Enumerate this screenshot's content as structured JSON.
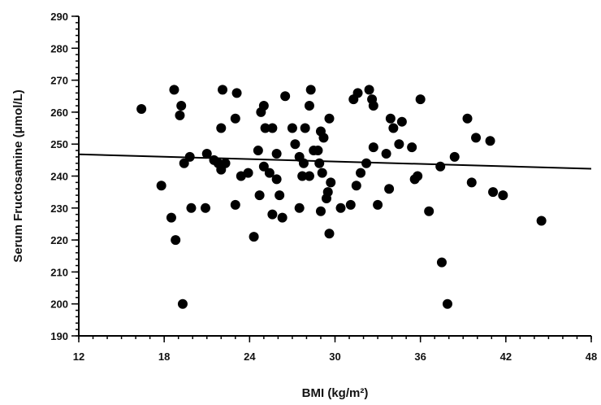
{
  "chart_data": {
    "type": "scatter",
    "title": "",
    "xlabel": "BMI (kg/m²)",
    "ylabel": "Serum Fructosamine (μmol/L)",
    "xlim": [
      12,
      48
    ],
    "ylim": [
      190,
      290
    ],
    "xticks": [
      12,
      18,
      24,
      30,
      36,
      42,
      48
    ],
    "yticks": [
      190,
      200,
      210,
      220,
      230,
      240,
      250,
      260,
      270,
      280,
      290
    ],
    "x_minor_step": 1,
    "y_minor_step": 2,
    "grid": false,
    "legend": "none",
    "trendline": {
      "x": [
        12,
        48
      ],
      "y": [
        246.8,
        242.3
      ]
    },
    "points": [
      [
        16.4,
        261
      ],
      [
        17.8,
        237
      ],
      [
        18.5,
        227
      ],
      [
        18.7,
        267
      ],
      [
        18.8,
        220
      ],
      [
        19.1,
        259
      ],
      [
        19.2,
        262
      ],
      [
        19.3,
        200
      ],
      [
        19.4,
        244
      ],
      [
        19.8,
        246
      ],
      [
        19.9,
        230
      ],
      [
        20.9,
        230
      ],
      [
        21.0,
        247
      ],
      [
        21.5,
        245
      ],
      [
        21.8,
        244
      ],
      [
        22.0,
        242
      ],
      [
        22.0,
        255
      ],
      [
        22.1,
        267
      ],
      [
        22.3,
        244
      ],
      [
        23.0,
        258
      ],
      [
        23.0,
        231
      ],
      [
        23.1,
        266
      ],
      [
        23.4,
        240
      ],
      [
        23.9,
        241
      ],
      [
        24.3,
        221
      ],
      [
        24.6,
        248
      ],
      [
        24.7,
        234
      ],
      [
        24.8,
        260
      ],
      [
        25.0,
        262
      ],
      [
        25.0,
        243
      ],
      [
        25.1,
        255
      ],
      [
        25.4,
        241
      ],
      [
        25.6,
        255
      ],
      [
        25.6,
        228
      ],
      [
        25.9,
        239
      ],
      [
        25.9,
        247
      ],
      [
        26.1,
        234
      ],
      [
        26.3,
        227
      ],
      [
        26.5,
        265
      ],
      [
        27.0,
        255
      ],
      [
        27.2,
        250
      ],
      [
        27.5,
        246
      ],
      [
        27.5,
        230
      ],
      [
        27.7,
        240
      ],
      [
        27.8,
        244
      ],
      [
        27.9,
        255
      ],
      [
        28.2,
        240
      ],
      [
        28.2,
        262
      ],
      [
        28.3,
        267
      ],
      [
        28.5,
        248
      ],
      [
        28.8,
        248
      ],
      [
        28.9,
        244
      ],
      [
        29.0,
        254
      ],
      [
        29.0,
        229
      ],
      [
        29.1,
        241
      ],
      [
        29.2,
        252
      ],
      [
        29.4,
        233
      ],
      [
        29.5,
        235
      ],
      [
        29.6,
        258
      ],
      [
        29.6,
        222
      ],
      [
        29.7,
        238
      ],
      [
        30.4,
        230
      ],
      [
        31.1,
        231
      ],
      [
        31.3,
        264
      ],
      [
        31.5,
        237
      ],
      [
        31.6,
        266
      ],
      [
        31.8,
        241
      ],
      [
        32.2,
        244
      ],
      [
        32.4,
        267
      ],
      [
        32.6,
        264
      ],
      [
        32.7,
        249
      ],
      [
        32.7,
        262
      ],
      [
        33.0,
        231
      ],
      [
        33.6,
        247
      ],
      [
        33.8,
        236
      ],
      [
        33.9,
        258
      ],
      [
        34.1,
        255
      ],
      [
        34.5,
        250
      ],
      [
        34.7,
        257
      ],
      [
        35.4,
        249
      ],
      [
        35.6,
        239
      ],
      [
        35.8,
        240
      ],
      [
        36.0,
        264
      ],
      [
        36.6,
        229
      ],
      [
        37.4,
        243
      ],
      [
        37.5,
        213
      ],
      [
        37.9,
        200
      ],
      [
        38.4,
        246
      ],
      [
        39.3,
        258
      ],
      [
        39.6,
        238
      ],
      [
        39.9,
        252
      ],
      [
        40.9,
        251
      ],
      [
        41.1,
        235
      ],
      [
        41.8,
        234
      ],
      [
        44.5,
        226
      ]
    ]
  }
}
